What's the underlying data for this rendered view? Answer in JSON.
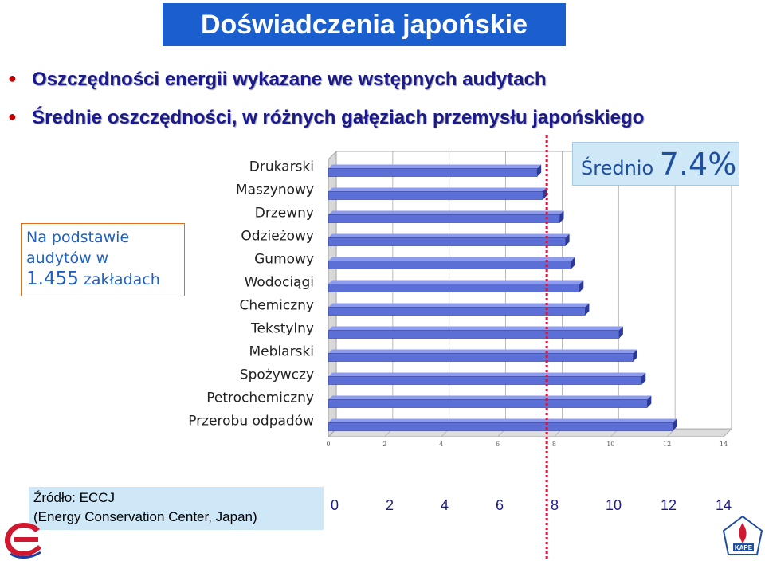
{
  "title": "Doświadczenia japońskie",
  "bullets": [
    "Oszczędności energii wykazane we wstępnych audytach",
    "Średnie oszczędności, w różnych gałęziach przemysłu japońskiego"
  ],
  "left_note": {
    "line1": "Na podstawie",
    "line2": "audytów w",
    "count": "1.455",
    "suffix": "zakładach"
  },
  "average": {
    "prefix": "Średnio",
    "value": "7.4%"
  },
  "source": {
    "line1": "Źródło: ECCJ",
    "line2": "(Energy Conservation Center, Japan)"
  },
  "colors": {
    "bar_front": "#5b6fd6",
    "bar_top": "#8e9cf0",
    "bar_side": "#2c3a96",
    "avg_line": "#e0103a"
  },
  "chart_data": {
    "type": "bar",
    "orientation": "horizontal",
    "categories": [
      "Drukarski",
      "Maszynowy",
      "Drzewny",
      "Odzieżowy",
      "Gumowy",
      "Wodociągi",
      "Chemiczny",
      "Tekstylny",
      "Meblarski",
      "Spożywczy",
      "Petrochemiczny",
      "Przerobu odpadów"
    ],
    "values": [
      7.4,
      7.6,
      8.2,
      8.4,
      8.6,
      8.9,
      9.1,
      10.3,
      10.8,
      11.1,
      11.3,
      12.2
    ],
    "xlim": [
      0,
      14
    ],
    "xticks": [
      0,
      2,
      4,
      6,
      8,
      10,
      12,
      14
    ],
    "average": 7.4,
    "grid": true
  }
}
